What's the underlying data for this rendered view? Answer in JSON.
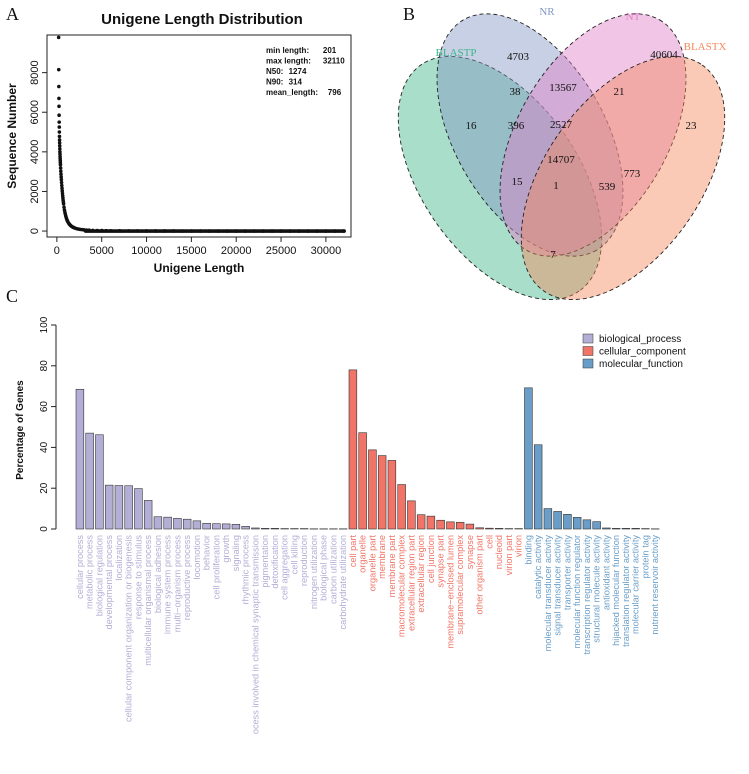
{
  "panels": {
    "a": "A",
    "b": "B",
    "c": "C"
  },
  "chart_data": [
    {
      "type": "scatter",
      "title": "Unigene Length Distribution",
      "xlabel": "Unigene Length",
      "ylabel": "Sequence Number",
      "xlim": [
        -1100,
        32800
      ],
      "ylim": [
        -300,
        9900
      ],
      "x_ticks": [
        0,
        5000,
        10000,
        15000,
        20000,
        25000,
        30000
      ],
      "y_ticks": [
        0,
        2000,
        4000,
        6000,
        8000
      ],
      "stats": [
        {
          "label": "min length:",
          "value": "201"
        },
        {
          "label": "max length:",
          "value": "32110"
        },
        {
          "label": "N50:",
          "value": "1274"
        },
        {
          "label": "N90:",
          "value": "314"
        },
        {
          "label": "mean_length:",
          "value": "796"
        }
      ],
      "points": [
        [
          201,
          9780
        ],
        [
          210,
          8150
        ],
        [
          220,
          7300
        ],
        [
          230,
          6700
        ],
        [
          240,
          6300
        ],
        [
          250,
          5850
        ],
        [
          260,
          5500
        ],
        [
          270,
          5250
        ],
        [
          280,
          5000
        ],
        [
          290,
          4780
        ],
        [
          300,
          4600
        ],
        [
          310,
          4450
        ],
        [
          320,
          4300
        ],
        [
          330,
          4150
        ],
        [
          340,
          4000
        ],
        [
          350,
          3880
        ],
        [
          360,
          3750
        ],
        [
          370,
          3650
        ],
        [
          380,
          3550
        ],
        [
          390,
          3450
        ],
        [
          400,
          3350
        ],
        [
          420,
          3180
        ],
        [
          440,
          3020
        ],
        [
          460,
          2870
        ],
        [
          480,
          2730
        ],
        [
          500,
          2600
        ],
        [
          525,
          2450
        ],
        [
          550,
          2300
        ],
        [
          575,
          2160
        ],
        [
          600,
          2030
        ],
        [
          625,
          1900
        ],
        [
          650,
          1780
        ],
        [
          675,
          1670
        ],
        [
          700,
          1560
        ],
        [
          725,
          1460
        ],
        [
          750,
          1370
        ],
        [
          800,
          1200
        ],
        [
          850,
          1060
        ],
        [
          900,
          940
        ],
        [
          950,
          840
        ],
        [
          1000,
          750
        ],
        [
          1050,
          670
        ],
        [
          1100,
          600
        ],
        [
          1150,
          540
        ],
        [
          1200,
          490
        ],
        [
          1300,
          410
        ],
        [
          1400,
          345
        ],
        [
          1500,
          295
        ],
        [
          1600,
          255
        ],
        [
          1700,
          222
        ],
        [
          1800,
          195
        ],
        [
          1900,
          172
        ],
        [
          2000,
          152
        ],
        [
          2200,
          122
        ],
        [
          2400,
          100
        ],
        [
          2600,
          84
        ],
        [
          2800,
          72
        ],
        [
          3000,
          62
        ],
        [
          3300,
          51
        ],
        [
          3600,
          43
        ],
        [
          4000,
          35
        ],
        [
          4500,
          28
        ],
        [
          5000,
          23
        ],
        [
          5500,
          19
        ],
        [
          6000,
          16
        ],
        [
          7000,
          12
        ],
        [
          8000,
          9
        ],
        [
          9000,
          7
        ],
        [
          10000,
          6
        ],
        [
          11000,
          5
        ],
        [
          12000,
          4
        ],
        [
          13000,
          4
        ],
        [
          14000,
          3
        ],
        [
          15000,
          3
        ],
        [
          16000,
          3
        ],
        [
          17000,
          2
        ],
        [
          18000,
          2
        ],
        [
          19000,
          2
        ],
        [
          20000,
          2
        ],
        [
          21000,
          2
        ],
        [
          22000,
          1
        ],
        [
          23000,
          1
        ],
        [
          24000,
          1
        ],
        [
          25000,
          1
        ],
        [
          26000,
          1
        ],
        [
          27000,
          1
        ],
        [
          28000,
          1
        ],
        [
          29000,
          1
        ],
        [
          30000,
          1
        ],
        [
          31000,
          1
        ],
        [
          32000,
          1
        ]
      ]
    },
    {
      "type": "venn",
      "sets": [
        {
          "name": "BLASTP",
          "color": "#3db589"
        },
        {
          "name": "NR",
          "color": "#8296c4"
        },
        {
          "name": "NT",
          "color": "#df7fc6"
        },
        {
          "name": "BLASTX",
          "color": "#f58a5e"
        }
      ],
      "regions": [
        {
          "sets": "NR",
          "value": 4703
        },
        {
          "sets": "NT",
          "value": 40604
        },
        {
          "sets": "BLASTP",
          "value": 16
        },
        {
          "sets": "BLASTX",
          "value": 23
        },
        {
          "sets": "BLASTP&NR",
          "value": 38
        },
        {
          "sets": "NR&NT",
          "value": 13567
        },
        {
          "sets": "NT&BLASTX",
          "value": 21
        },
        {
          "sets": "BLASTP&NR&NT",
          "value": 396
        },
        {
          "sets": "NR&NT&BLASTX",
          "value": 2527
        },
        {
          "sets": "BLASTP&NR&NT&BLASTX",
          "value": 14707
        },
        {
          "sets": "BLASTP&NT",
          "value": 15
        },
        {
          "sets": "NR&BLASTX",
          "value": 773
        },
        {
          "sets": "BLASTP&NT&BLASTX",
          "value": 1
        },
        {
          "sets": "BLASTP&NR&BLASTX",
          "value": 539
        },
        {
          "sets": "BLASTP&BLASTX",
          "value": 7
        }
      ]
    },
    {
      "type": "bar",
      "ylabel": "Percentage of Genes",
      "ylim": [
        0,
        100
      ],
      "y_ticks": [
        0,
        20,
        40,
        60,
        80,
        100
      ],
      "legend_position": "top-right",
      "series": [
        {
          "name": "biological_process",
          "color": "#b3aed6",
          "categories": [
            "cellular process",
            "metabolic process",
            "biological regulation",
            "developmental process",
            "localization",
            "cellular component organization or biogenesis",
            "response to stimulus",
            "multicellular organismal process",
            "biological adhesion",
            "immune system process",
            "multi−organism process",
            "reproductive process",
            "locomotion",
            "behavior",
            "cell proliferation",
            "growth",
            "signaling",
            "rhythmic process",
            "ocess involved in chemical synaptic transmission",
            "pigmentation",
            "detoxification",
            "cell aggregation",
            "cell killing",
            "reproduction",
            "nitrogen utilization",
            "biological phase",
            "carbon utilization",
            "carbohydrate utilization"
          ],
          "values": [
            68.5,
            47,
            46.2,
            21.5,
            21.3,
            21.2,
            19.8,
            14,
            6,
            5.8,
            5.2,
            4.8,
            4,
            2.8,
            2.6,
            2.5,
            2.3,
            1.3,
            0.5,
            0.3,
            0.3,
            0.2,
            0.2,
            0.2,
            0.1,
            0.1,
            0.1,
            0.1
          ]
        },
        {
          "name": "cellular_component",
          "color": "#f07467",
          "categories": [
            "cell part",
            "organelle",
            "organelle part",
            "membrane",
            "membrane part",
            "macromolecular complex",
            "extracellular region part",
            "extracellular region",
            "cell junction",
            "synapse part",
            "membrane−enclosed lumen",
            "supramolecular complex",
            "synapse",
            "other organism part",
            "cell",
            "nucleoid",
            "virion part",
            "virion"
          ],
          "values": [
            78,
            47.2,
            38.8,
            36,
            33.6,
            21.8,
            13.8,
            7,
            6.3,
            4.3,
            3.5,
            3.3,
            2.4,
            0.6,
            0.4,
            0.3,
            0.2,
            0.2
          ]
        },
        {
          "name": "molecular_function",
          "color": "#6a9ec8",
          "categories": [
            "binding",
            "catalytic activity",
            "molecular transducer activity",
            "signal transducer activity",
            "transporter activity",
            "molecular function regulator",
            "transcription regulator activity",
            "structural molecule activity",
            "antioxidant activity",
            "hijacked molecular function",
            "translation regulator activity",
            "molecular carrier activity",
            "protein tag",
            "nutrient reservoir activity"
          ],
          "values": [
            69.2,
            41.3,
            10,
            8.6,
            7.2,
            5.7,
            4.5,
            3.6,
            0.5,
            0.3,
            0.3,
            0.3,
            0.2,
            0.1
          ]
        }
      ]
    }
  ]
}
